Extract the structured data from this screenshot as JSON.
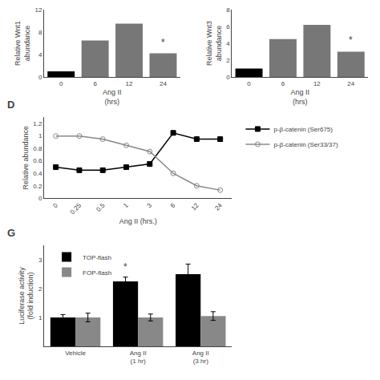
{
  "chart_data": [
    {
      "type": "bar",
      "categories": [
        "0",
        "6",
        "12",
        "24"
      ],
      "values": [
        1.0,
        6.5,
        9.5,
        4.2
      ],
      "colors": [
        "black",
        "#777",
        "#777",
        "#777"
      ],
      "xlabel": "Ang II\n(hrs)",
      "ylabel": "Relative Wnt1\nabundance",
      "ylim": [
        0,
        12
      ],
      "yticks": [
        0,
        4,
        8,
        12
      ],
      "grid": false,
      "annotations": [
        {
          "text": "*",
          "x": 3,
          "y": 4.8
        }
      ]
    },
    {
      "type": "bar",
      "categories": [
        "0",
        "6",
        "12",
        "24"
      ],
      "values": [
        1.0,
        4.5,
        6.2,
        3.0
      ],
      "colors": [
        "black",
        "#777",
        "#777",
        "#777"
      ],
      "xlabel": "Ang II\n(hrs)",
      "ylabel": "Relative Wnt3\nabundance",
      "ylim": [
        0,
        8
      ],
      "yticks": [
        0,
        2,
        4,
        6,
        8
      ],
      "grid": false,
      "annotations": [
        {
          "text": "*",
          "x": 3,
          "y": 3.5
        }
      ]
    },
    {
      "type": "line",
      "title": "D",
      "categories": [
        "0",
        "0.25",
        "0.5",
        "1",
        "3",
        "6",
        "12",
        "24"
      ],
      "series": [
        {
          "name": "p-β-catenin (Ser675)",
          "color": "black",
          "marker": "square",
          "line_style": "solid",
          "values": [
            0.5,
            0.45,
            0.45,
            0.5,
            0.55,
            1.05,
            0.95,
            0.95
          ]
        },
        {
          "name": "p-β-catenin (Ser33/37)",
          "color": "#888888",
          "marker": "open circle",
          "line_style": "solid",
          "values": [
            1.0,
            1.0,
            0.95,
            0.85,
            0.75,
            0.4,
            0.2,
            0.13
          ]
        }
      ],
      "xlabel": "Ang II (hrs.)",
      "ylabel": "Relative abundance",
      "ylim": [
        0,
        1.3
      ],
      "yticks": [
        0,
        0.2,
        0.4,
        0.6,
        0.8,
        1.0,
        1.2
      ],
      "grid": false,
      "legend": "upper right"
    },
    {
      "type": "bar",
      "title": "G",
      "categories": [
        "Vehicle",
        "Ang II\n(1 hr)",
        "Ang II\n(3 hr)"
      ],
      "series": [
        {
          "name": "TOP-flash",
          "color": "black",
          "values": [
            1.0,
            2.25,
            2.5
          ],
          "errors": [
            0.1,
            0.15,
            0.35
          ]
        },
        {
          "name": "FOP-flash",
          "color": "#888888",
          "values": [
            1.0,
            1.0,
            1.05
          ],
          "errors": [
            0.15,
            0.12,
            0.15
          ]
        }
      ],
      "ylabel": "Luciferase activity\n(fold induction)",
      "ylim": [
        0,
        3.5
      ],
      "yticks": [
        1,
        2,
        3
      ],
      "grid": false,
      "legend": "upper left",
      "annotations": [
        {
          "text": "*",
          "x": 1,
          "y": 2.5
        }
      ]
    }
  ]
}
